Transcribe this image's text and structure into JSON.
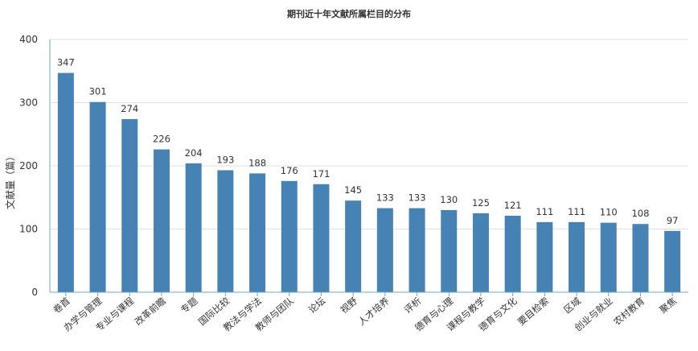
{
  "chart_data": {
    "type": "bar",
    "title": "期刊近十年文献所属栏目的分布",
    "xlabel": "",
    "ylabel": "文献量（篇）",
    "ylim": [
      0,
      400
    ],
    "yticks": [
      0,
      100,
      200,
      300,
      400
    ],
    "grid": true,
    "legend": "none",
    "categories": [
      "卷首",
      "办学与管理",
      "专业与课程",
      "改革前瞻",
      "专题",
      "国际比较",
      "教法与学法",
      "教师与团队",
      "论坛",
      "视野",
      "人才培养",
      "评析",
      "德育与心理",
      "课程与教学",
      "德育与文化",
      "要目检索",
      "区域",
      "创业与就业",
      "农村教育",
      "聚焦"
    ],
    "values": [
      347,
      301,
      274,
      226,
      204,
      193,
      188,
      176,
      171,
      145,
      133,
      133,
      130,
      125,
      121,
      111,
      111,
      110,
      108,
      97
    ],
    "bar_color": "#4682b4",
    "axis_color": "#6fa8c7",
    "grid_color": "#e0e0e0"
  }
}
